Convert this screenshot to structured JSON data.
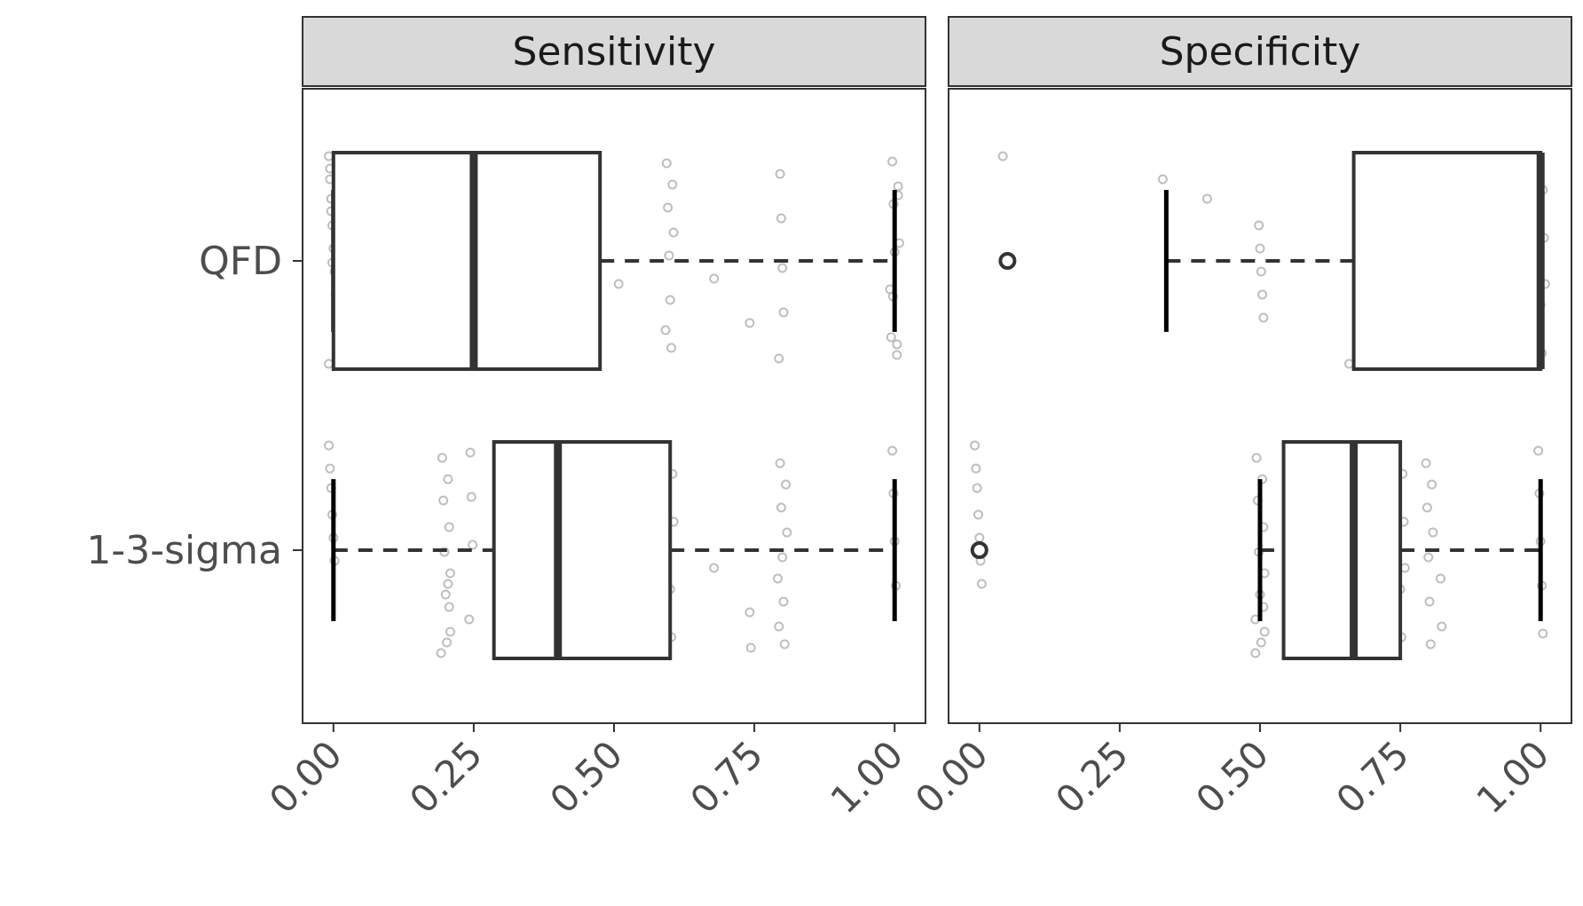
{
  "chart_data": {
    "type": "boxplot",
    "orientation": "horizontal",
    "categories": [
      "QFD",
      "1-3-sigma"
    ],
    "x_ticks": [
      "0.00",
      "0.25",
      "0.50",
      "0.75",
      "1.00"
    ],
    "xlim": [
      -0.055,
      1.055
    ],
    "grid": false,
    "panels": [
      {
        "label": "Sensitivity",
        "boxes": [
          {
            "category": "QFD",
            "whisker_low": 0.0,
            "q1": 0.0,
            "median": 0.25,
            "q3": 0.475,
            "whisker_high": 1.0,
            "outliers": []
          },
          {
            "category": "1-3-sigma",
            "whisker_low": 0.0,
            "q1": 0.286,
            "median": 0.4,
            "q3": 0.6,
            "whisker_high": 1.0,
            "outliers": []
          }
        ],
        "points": [
          {
            "category": "QFD",
            "values": [
              0.0,
              0.0,
              0.0,
              0.0,
              0.0,
              0.0,
              0.0,
              0.0,
              0.0,
              0.0,
              0.0,
              0.0,
              0.0,
              0.005,
              0.2,
              0.4,
              0.4,
              0.5,
              0.6,
              0.6,
              0.6,
              0.6,
              0.6,
              0.6,
              0.6,
              0.6,
              0.67,
              0.75,
              0.8,
              0.8,
              0.8,
              0.8,
              0.8,
              1.0,
              1.0,
              1.0,
              1.0,
              1.0,
              1.0,
              1.0,
              1.0,
              0.995,
              1.0,
              1.0
            ]
          },
          {
            "category": "1-3-sigma",
            "values": [
              0.0,
              0.0,
              0.0,
              0.0,
              0.0,
              0.0,
              0.2,
              0.2,
              0.2,
              0.2,
              0.2,
              0.2,
              0.2,
              0.2,
              0.2,
              0.2,
              0.2,
              0.2,
              0.25,
              0.25,
              0.25,
              0.25,
              0.6,
              0.6,
              0.6,
              0.6,
              0.67,
              0.75,
              0.75,
              0.8,
              0.8,
              0.8,
              0.8,
              0.8,
              0.8,
              0.8,
              0.8,
              0.8,
              1.0,
              1.0,
              1.0,
              1.0
            ]
          }
        ]
      },
      {
        "label": "Specificity",
        "boxes": [
          {
            "category": "QFD",
            "whisker_low": 0.333,
            "q1": 0.667,
            "median": 1.0,
            "q3": 1.0,
            "whisker_high": 1.0,
            "outliers": [
              0.05
            ]
          },
          {
            "category": "1-3-sigma",
            "whisker_low": 0.5,
            "q1": 0.542,
            "median": 0.667,
            "q3": 0.75,
            "whisker_high": 1.0,
            "outliers": [
              0.0
            ]
          }
        ],
        "points": [
          {
            "category": "QFD",
            "values": [
              0.05,
              0.333,
              0.41,
              0.5,
              0.5,
              0.5,
              0.5,
              0.5,
              0.667,
              0.667,
              0.75,
              1.0,
              1.0,
              1.0,
              1.0,
              1.0,
              1.0,
              1.0,
              1.0,
              1.0,
              1.0
            ]
          },
          {
            "category": "1-3-sigma",
            "values": [
              0.0,
              0.0,
              0.0,
              0.0,
              0.0,
              0.0,
              0.0,
              0.5,
              0.5,
              0.5,
              0.5,
              0.5,
              0.5,
              0.5,
              0.5,
              0.5,
              0.5,
              0.5,
              0.5,
              0.67,
              0.67,
              0.67,
              0.75,
              0.75,
              0.75,
              0.75,
              0.75,
              0.75,
              0.75,
              0.8,
              0.8,
              0.8,
              0.8,
              0.8,
              0.8,
              0.8,
              0.83,
              0.83,
              1.0,
              1.0,
              1.0,
              1.0,
              1.0
            ]
          }
        ]
      }
    ]
  }
}
